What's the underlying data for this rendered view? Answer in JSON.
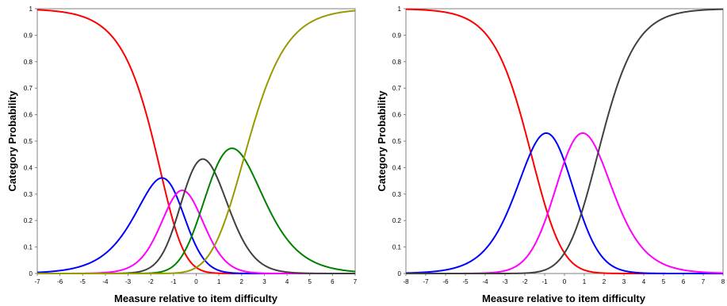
{
  "chart_data": [
    {
      "type": "line",
      "xlabel": "Measure relative to item difficulty",
      "ylabel": "Category Probability",
      "xlim": [
        -7,
        7
      ],
      "ylim": [
        0,
        1
      ],
      "xticks": [
        -7,
        -6,
        -5,
        -4,
        -3,
        -2,
        -1,
        0,
        1,
        2,
        3,
        4,
        5,
        6,
        7
      ],
      "yticks": [
        0,
        0.1,
        0.2,
        0.3,
        0.4,
        0.5,
        0.6,
        0.7,
        0.8,
        0.9,
        1
      ],
      "ytick_labels": [
        "0",
        "0.1",
        "0.2",
        "0.3",
        "0.4",
        "0.5",
        "0.6",
        "0.7",
        "0.8",
        "0.9",
        "1"
      ],
      "grid": false,
      "legend": "none",
      "thresholds": [
        -1.5,
        -0.9,
        -0.5,
        0.8,
        2.1
      ],
      "series": [
        {
          "color": "#ff0000",
          "category_index": 0
        },
        {
          "color": "#0000ff",
          "category_index": 1
        },
        {
          "color": "#ff00ff",
          "category_index": 2
        },
        {
          "color": "#404040",
          "category_index": 3
        },
        {
          "color": "#008000",
          "category_index": 4
        },
        {
          "color": "#999900",
          "category_index": 5
        }
      ]
    },
    {
      "type": "line",
      "xlabel": "Measure relative to item difficulty",
      "ylabel": "Category Probability",
      "xlim": [
        -8,
        8
      ],
      "ylim": [
        0,
        1
      ],
      "xticks": [
        -8,
        -7,
        -6,
        -5,
        -4,
        -3,
        -2,
        -1,
        0,
        1,
        2,
        3,
        4,
        5,
        6,
        7,
        8
      ],
      "yticks": [
        0,
        0.1,
        0.2,
        0.3,
        0.4,
        0.5,
        0.6,
        0.7,
        0.8,
        0.9,
        1
      ],
      "ytick_labels": [
        "0",
        "0.1",
        "0.2",
        "0.3",
        "0.4",
        "0.5",
        "0.6",
        "0.7",
        "0.8",
        "0.9",
        "1"
      ],
      "grid": false,
      "legend": "none",
      "thresholds": [
        -1.7,
        0,
        1.7
      ],
      "series": [
        {
          "color": "#ff0000",
          "category_index": 0
        },
        {
          "color": "#0000ff",
          "category_index": 1
        },
        {
          "color": "#ff00ff",
          "category_index": 2
        },
        {
          "color": "#404040",
          "category_index": 3
        }
      ]
    }
  ]
}
